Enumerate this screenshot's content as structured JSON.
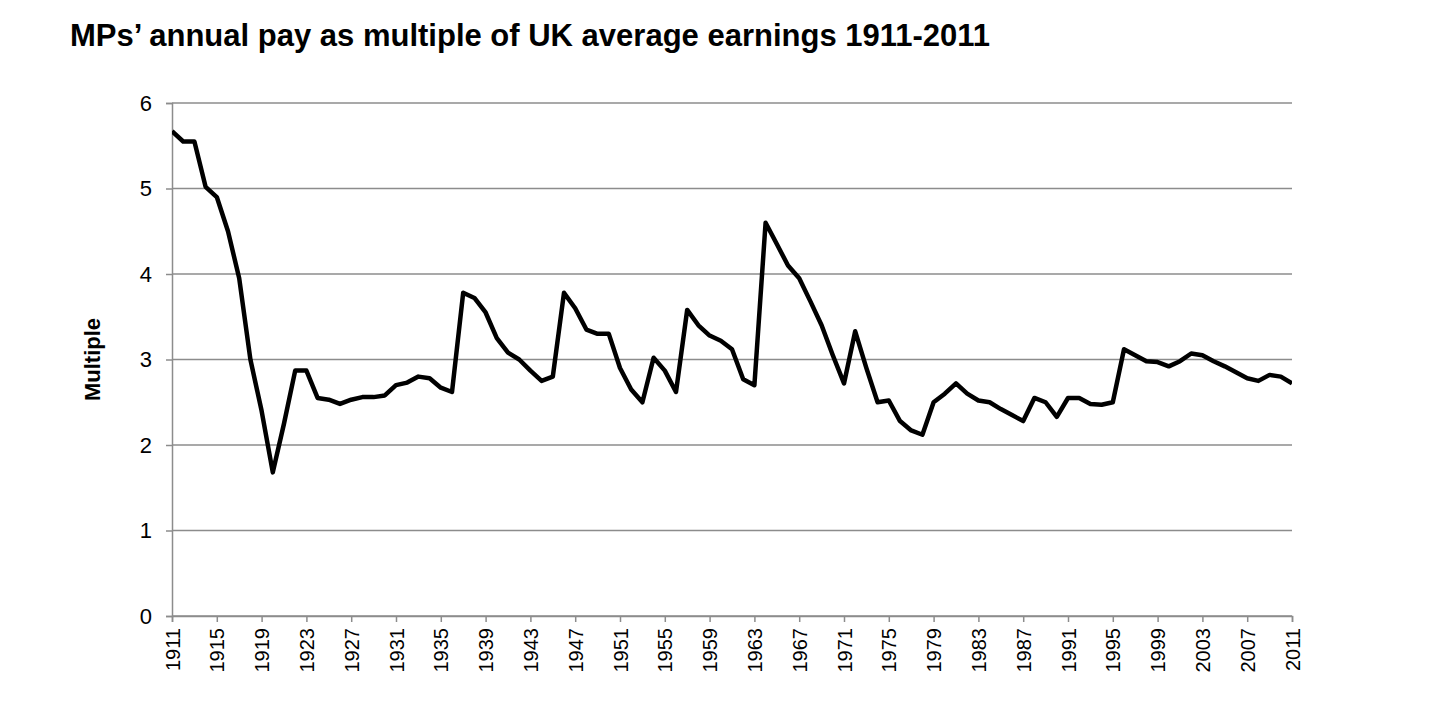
{
  "chart_data": {
    "type": "line",
    "title": "MPs’ annual pay as multiple of UK average earnings 1911-2011",
    "y_label": "Multiple",
    "x": [
      1911,
      1912,
      1913,
      1914,
      1915,
      1916,
      1917,
      1918,
      1919,
      1920,
      1921,
      1922,
      1923,
      1924,
      1925,
      1926,
      1927,
      1928,
      1929,
      1930,
      1931,
      1932,
      1933,
      1934,
      1935,
      1936,
      1937,
      1938,
      1939,
      1940,
      1941,
      1942,
      1943,
      1944,
      1945,
      1946,
      1947,
      1948,
      1949,
      1950,
      1951,
      1952,
      1953,
      1954,
      1955,
      1956,
      1957,
      1958,
      1959,
      1960,
      1961,
      1962,
      1963,
      1964,
      1965,
      1966,
      1967,
      1968,
      1969,
      1970,
      1971,
      1972,
      1973,
      1974,
      1975,
      1976,
      1977,
      1978,
      1979,
      1980,
      1981,
      1982,
      1983,
      1984,
      1985,
      1986,
      1987,
      1988,
      1989,
      1990,
      1991,
      1992,
      1993,
      1994,
      1995,
      1996,
      1997,
      1998,
      1999,
      2000,
      2001,
      2002,
      2003,
      2004,
      2005,
      2006,
      2007,
      2008,
      2009,
      2010,
      2011
    ],
    "values": [
      5.67,
      5.55,
      5.55,
      5.02,
      4.9,
      4.5,
      3.95,
      3.0,
      2.4,
      1.68,
      2.25,
      2.87,
      2.87,
      2.55,
      2.53,
      2.48,
      2.53,
      2.56,
      2.56,
      2.58,
      2.7,
      2.73,
      2.8,
      2.78,
      2.67,
      2.62,
      3.78,
      3.72,
      3.55,
      3.25,
      3.08,
      3.0,
      2.87,
      2.75,
      2.8,
      3.78,
      3.6,
      3.35,
      3.3,
      3.3,
      2.9,
      2.65,
      2.5,
      3.02,
      2.87,
      2.62,
      3.58,
      3.4,
      3.28,
      3.22,
      3.12,
      2.77,
      2.7,
      4.6,
      4.35,
      4.1,
      3.95,
      3.68,
      3.4,
      3.05,
      2.72,
      3.33,
      2.9,
      2.5,
      2.52,
      2.28,
      2.17,
      2.12,
      2.5,
      2.6,
      2.72,
      2.6,
      2.52,
      2.5,
      2.42,
      2.35,
      2.28,
      2.55,
      2.5,
      2.33,
      2.55,
      2.55,
      2.48,
      2.47,
      2.5,
      3.12,
      3.05,
      2.98,
      2.97,
      2.92,
      2.98,
      3.07,
      3.05,
      2.98,
      2.92,
      2.85,
      2.78,
      2.75,
      2.82,
      2.8,
      2.72
    ],
    "color": "#000000",
    "xlim": [
      1911,
      2011
    ],
    "xticks": [
      1911,
      1915,
      1919,
      1923,
      1927,
      1931,
      1935,
      1939,
      1943,
      1947,
      1951,
      1955,
      1959,
      1963,
      1967,
      1971,
      1975,
      1979,
      1983,
      1987,
      1991,
      1995,
      1999,
      2003,
      2007,
      2011
    ],
    "ylim": [
      0,
      6
    ],
    "yticks": [
      0,
      1,
      2,
      3,
      4,
      5,
      6
    ],
    "grid": true
  }
}
